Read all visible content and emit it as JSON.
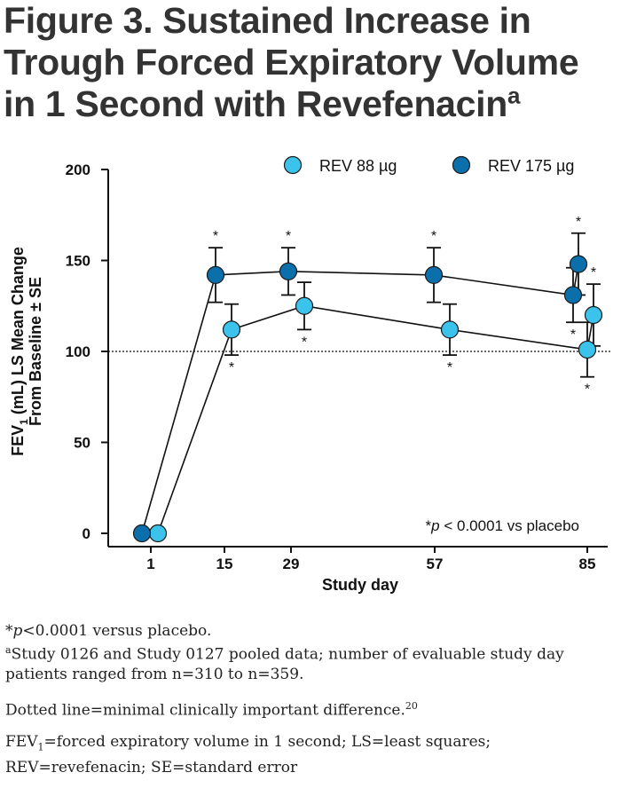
{
  "title": {
    "text": "Figure 3. Sustained Increase in Trough Forced Expiratory Volume in 1 Second with Revefenacin",
    "superscript": "a"
  },
  "chart_data": {
    "type": "line",
    "xlabel": "Study day",
    "ylabel_line1": "FEV",
    "ylabel_sub": "1",
    "ylabel_line1_rest": " (mL) LS Mean Change",
    "ylabel_line2": "From Baseline ± SE",
    "x_ticks": [
      1,
      15,
      29,
      57,
      85
    ],
    "y_ticks": [
      0,
      50,
      100,
      150,
      200
    ],
    "ylim": [
      0,
      200
    ],
    "reference_line": {
      "y": 100,
      "style": "dotted"
    },
    "legend_position": "top-right",
    "annotation": {
      "prefix": "*",
      "italic": "p",
      "rest": " < 0.0001 vs placebo"
    },
    "series": [
      {
        "name": "REV 88 µg",
        "color": "#3cc3ec",
        "points": [
          {
            "x": 1,
            "y": 0,
            "se": 0,
            "star": false
          },
          {
            "x": 15,
            "y": 112,
            "se": 14,
            "star": true
          },
          {
            "x": 29,
            "y": 125,
            "se": 13,
            "star": true
          },
          {
            "x": 57,
            "y": 112,
            "se": 14,
            "star": true
          },
          {
            "x": 85,
            "y": 101,
            "se": 15,
            "star": true
          },
          {
            "x": 85,
            "y": 120,
            "se": 17,
            "star": true
          }
        ]
      },
      {
        "name": "REV 175 µg",
        "color": "#0b6fab",
        "points": [
          {
            "x": 1,
            "y": 0,
            "se": 0,
            "star": false
          },
          {
            "x": 15,
            "y": 142,
            "se": 15,
            "star": true
          },
          {
            "x": 29,
            "y": 144,
            "se": 13,
            "star": true
          },
          {
            "x": 57,
            "y": 142,
            "se": 15,
            "star": true
          },
          {
            "x": 85,
            "y": 131,
            "se": 15,
            "star": true
          },
          {
            "x": 85,
            "y": 148,
            "se": 17,
            "star": true
          }
        ]
      }
    ]
  },
  "notes": {
    "n1_prefix": "*",
    "n1_italic": "p",
    "n1_rest": "<0.0001 versus placebo.",
    "n2_sup": "a",
    "n2_text": "Study 0126 and Study 0127 pooled data; number of evaluable study day patients ranged from n=310 to n=359.",
    "n3_text": "Dotted line=minimal clinically important difference.",
    "n3_sup": "20",
    "n4_a": "FEV",
    "n4_sub": "1",
    "n4_b": "=forced expiratory volume in 1 second; LS=least squares; REV=revefenacin; SE=standard error"
  }
}
